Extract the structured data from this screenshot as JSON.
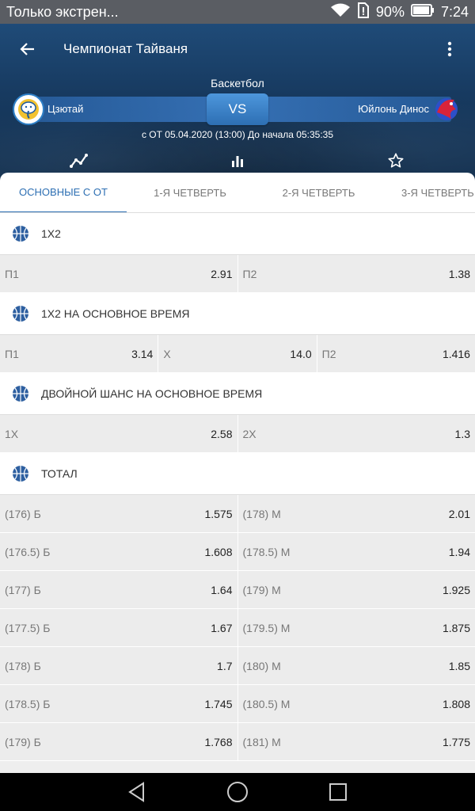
{
  "status_bar": {
    "notification": "Только экстрен...",
    "battery": "90%",
    "time": "7:24"
  },
  "header": {
    "title": "Чемпионат Тайваня",
    "sport": "Баскетбол",
    "team_home": "Цзютай",
    "team_away": "Юйлонь Динос",
    "vs": "VS",
    "start_info": "с ОТ 05.04.2020 (13:00) До начала 05:35:35"
  },
  "tabs": [
    {
      "label": "ОСНОВНЫЕ С ОТ"
    },
    {
      "label": "1-Я ЧЕТВЕРТЬ"
    },
    {
      "label": "2-Я ЧЕТВЕРТЬ"
    },
    {
      "label": "3-Я ЧЕТВЕРТЬ"
    }
  ],
  "markets": {
    "m1": {
      "title": "1Х2",
      "rows": [
        [
          {
            "l": "П1",
            "v": "2.91"
          },
          {
            "l": "П2",
            "v": "1.38"
          }
        ]
      ]
    },
    "m2": {
      "title": "1Х2 НА ОСНОВНОЕ ВРЕМЯ",
      "rows": [
        [
          {
            "l": "П1",
            "v": "3.14"
          },
          {
            "l": "Х",
            "v": "14.0"
          },
          {
            "l": "П2",
            "v": "1.416"
          }
        ]
      ]
    },
    "m3": {
      "title": "ДВОЙНОЙ ШАНС НА ОСНОВНОЕ ВРЕМЯ",
      "rows": [
        [
          {
            "l": "1Х",
            "v": "2.58"
          },
          {
            "l": "2Х",
            "v": "1.3"
          }
        ]
      ]
    },
    "m4": {
      "title": "ТОТАЛ",
      "rows": [
        [
          {
            "l": "(176) Б",
            "v": "1.575"
          },
          {
            "l": "(178) М",
            "v": "2.01"
          }
        ],
        [
          {
            "l": "(176.5) Б",
            "v": "1.608"
          },
          {
            "l": "(178.5) М",
            "v": "1.94"
          }
        ],
        [
          {
            "l": "(177) Б",
            "v": "1.64"
          },
          {
            "l": "(179) М",
            "v": "1.925"
          }
        ],
        [
          {
            "l": "(177.5) Б",
            "v": "1.67"
          },
          {
            "l": "(179.5) М",
            "v": "1.875"
          }
        ],
        [
          {
            "l": "(178) Б",
            "v": "1.7"
          },
          {
            "l": "(180) М",
            "v": "1.85"
          }
        ],
        [
          {
            "l": "(178.5) Б",
            "v": "1.745"
          },
          {
            "l": "(180.5) М",
            "v": "1.808"
          }
        ],
        [
          {
            "l": "(179) Б",
            "v": "1.768"
          },
          {
            "l": "(181) М",
            "v": "1.775"
          }
        ]
      ]
    }
  },
  "colors": {
    "accent": "#2d6fb3",
    "header_bg": "#173a60"
  }
}
